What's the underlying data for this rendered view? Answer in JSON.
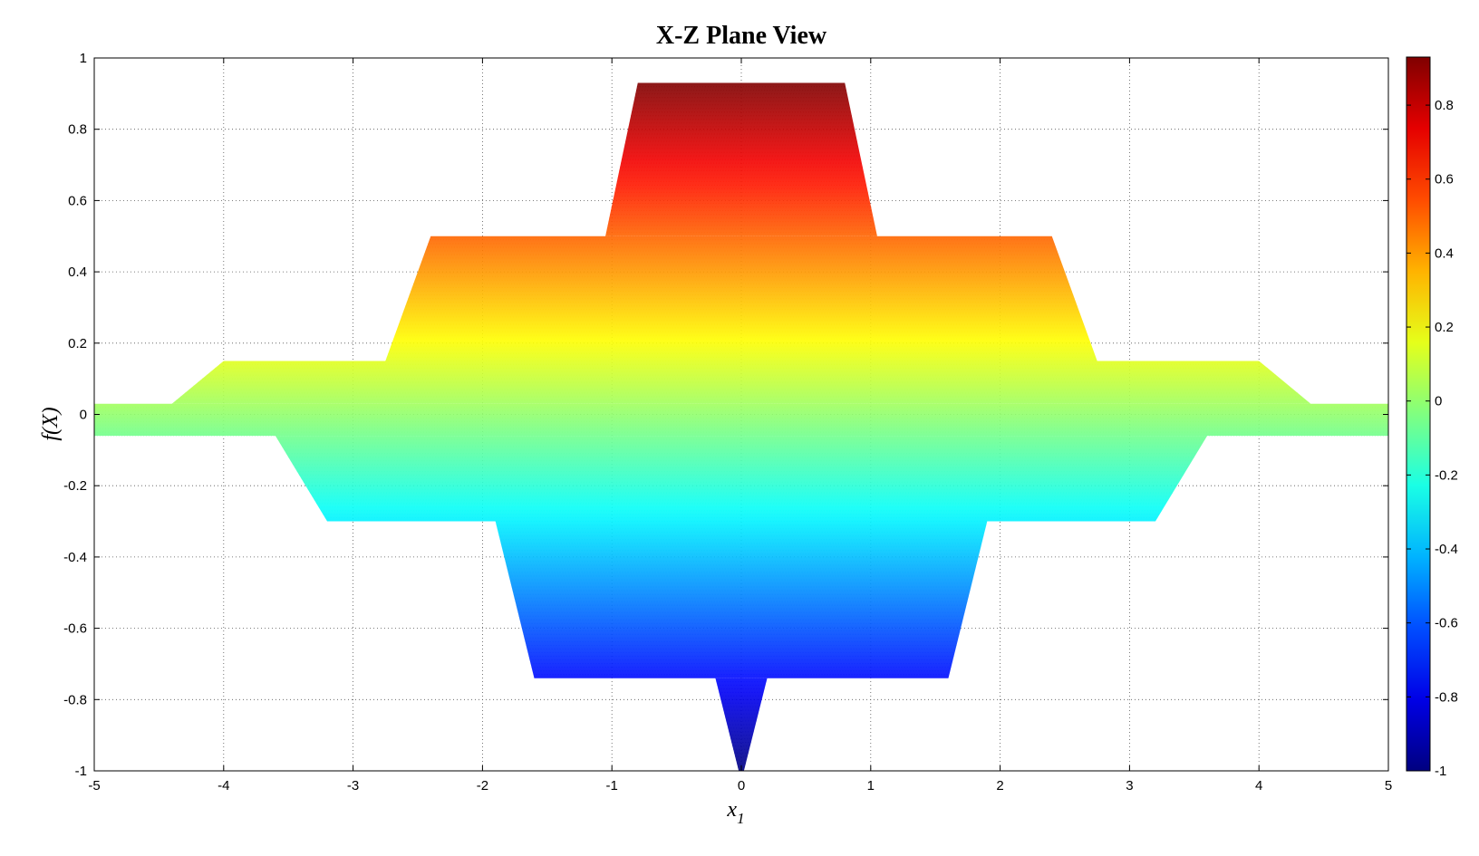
{
  "chart_data": {
    "type": "scatter",
    "title": "X-Z Plane View",
    "xlabel": "x",
    "xlabel_subscript": "1",
    "ylabel": "f(X)",
    "xlim": [
      -5,
      5
    ],
    "ylim": [
      -1,
      1
    ],
    "grid": true,
    "grid_style": "dotted",
    "x_ticks": [
      "-5",
      "-4",
      "-3",
      "-2",
      "-1",
      "0",
      "1",
      "2",
      "3",
      "4",
      "5"
    ],
    "y_ticks": [
      "-1",
      "-0.8",
      "-0.6",
      "-0.4",
      "-0.2",
      "0",
      "0.2",
      "0.4",
      "0.6",
      "0.8",
      "1"
    ],
    "colormap": "jet",
    "colorbar": {
      "placement": "right",
      "range": [
        -1,
        0.93
      ],
      "ticks": [
        "-1",
        "-0.8",
        "-0.6",
        "-0.4",
        "-0.2",
        "0",
        "0.2",
        "0.4",
        "0.6",
        "0.8"
      ]
    },
    "layers": [
      {
        "x_top": [
          -0.8,
          0.8
        ],
        "x_base": [
          -1.05,
          1.05
        ],
        "y_top": 0.93,
        "y_base": 0.5
      },
      {
        "x_top": [
          -2.4,
          2.4
        ],
        "x_base": [
          -2.75,
          2.75
        ],
        "y_top": 0.5,
        "y_base": 0.15
      },
      {
        "x_top": [
          -4.0,
          4.0
        ],
        "x_base": [
          -4.4,
          4.4
        ],
        "y_top": 0.15,
        "y_base": 0.03
      },
      {
        "x_top": [
          -5.0,
          5.0
        ],
        "x_base": [
          -5.0,
          5.0
        ],
        "y_top": 0.03,
        "y_base": -0.06
      },
      {
        "x_top": [
          -3.2,
          3.2
        ],
        "x_base": [
          -3.6,
          3.6
        ],
        "y_top": -0.3,
        "y_base": -0.06
      },
      {
        "x_top": [
          -1.6,
          1.6
        ],
        "x_base": [
          -1.9,
          1.9
        ],
        "y_top": -0.74,
        "y_base": -0.3
      },
      {
        "x_top": [
          -0.02,
          0.02
        ],
        "x_base": [
          -0.2,
          0.2
        ],
        "y_top": -1.0,
        "y_base": -0.74
      }
    ]
  }
}
